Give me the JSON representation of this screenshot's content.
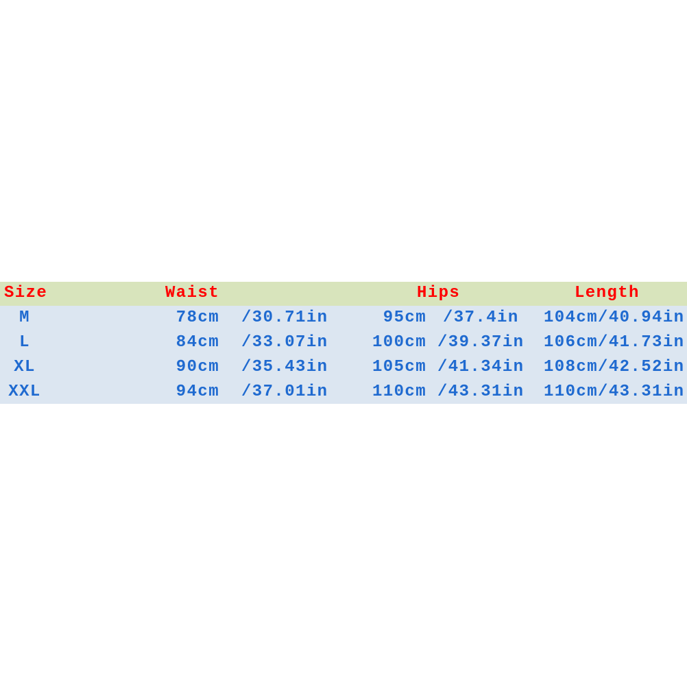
{
  "header": {
    "size": "Size",
    "waist": "Waist",
    "hips": "Hips",
    "length": "Length"
  },
  "rows": [
    {
      "size": "M",
      "waist_cm": "78cm",
      "waist_in": "/30.71in",
      "hips_cm": "95cm",
      "hips_in": "/37.4in",
      "length": "104cm/40.94in"
    },
    {
      "size": "L",
      "waist_cm": "84cm",
      "waist_in": "/33.07in",
      "hips_cm": "100cm",
      "hips_in": "/39.37in",
      "length": "106cm/41.73in"
    },
    {
      "size": "XL",
      "waist_cm": "90cm",
      "waist_in": "/35.43in",
      "hips_cm": "105cm",
      "hips_in": "/41.34in",
      "length": "108cm/42.52in"
    },
    {
      "size": "XXL",
      "waist_cm": "94cm",
      "waist_in": "/37.01in",
      "hips_cm": "110cm",
      "hips_in": "/43.31in",
      "length": "110cm/43.31in"
    }
  ],
  "colors": {
    "header_bg": "#d8e4bc",
    "body_bg": "#dce6f1",
    "header_text": "#ff0000",
    "body_text": "#1f6ad0"
  }
}
